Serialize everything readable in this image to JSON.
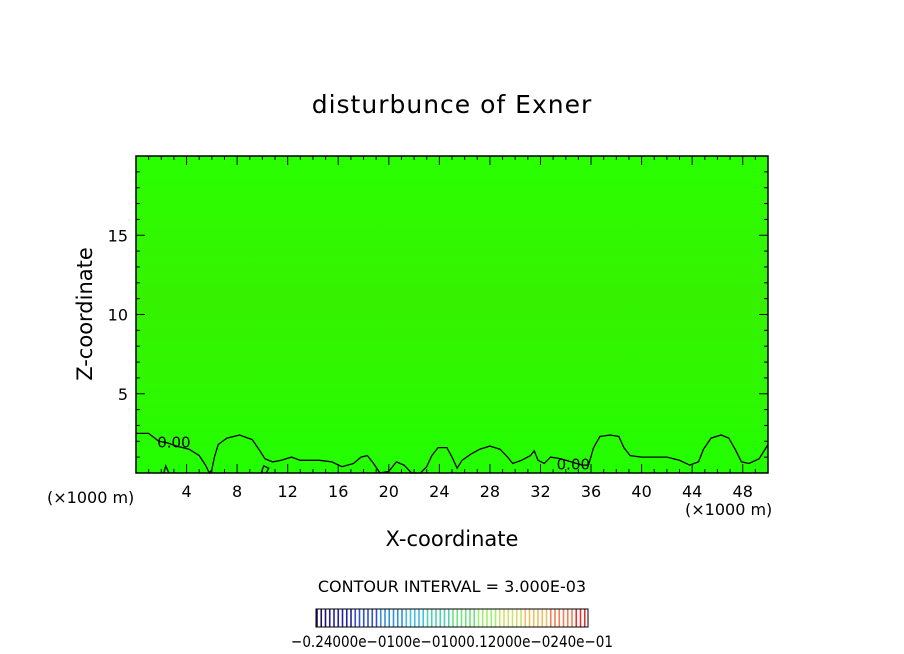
{
  "chart_data": {
    "type": "heatmap",
    "title": "disturbunce of Exner",
    "xlabel": "X-coordinate",
    "ylabel": "Z-coordinate",
    "x_unit": "(×1000 m)",
    "y_unit": "(×1000 m)",
    "xlim": [
      0,
      50
    ],
    "ylim": [
      0,
      20
    ],
    "x_ticks": [
      4,
      8,
      12,
      16,
      20,
      24,
      28,
      32,
      36,
      40,
      44,
      48
    ],
    "y_ticks": [
      5,
      10,
      15
    ],
    "field_color": "#22ff00",
    "contour_interval_text": "CONTOUR INTERVAL = 3.000E-03",
    "contours": [
      {
        "level": "0.00",
        "labels": [
          {
            "text": "0.00",
            "x": 3.0,
            "y": 2.0
          },
          {
            "text": "0.00",
            "x": 34.6,
            "y": 0.6
          }
        ],
        "points": [
          [
            0,
            2.5
          ],
          [
            1.0,
            2.5
          ],
          [
            1.8,
            2.0
          ],
          [
            2.5,
            1.9
          ],
          [
            3.2,
            1.7
          ],
          [
            4.2,
            1.5
          ],
          [
            5.0,
            1.1
          ],
          [
            5.5,
            0.5
          ],
          [
            5.8,
            0.0
          ],
          [
            6.0,
            0.2
          ],
          [
            6.2,
            1.0
          ],
          [
            6.5,
            1.8
          ],
          [
            7.2,
            2.2
          ],
          [
            8.2,
            2.4
          ],
          [
            9.2,
            2.1
          ],
          [
            9.8,
            1.4
          ],
          [
            10.2,
            0.9
          ],
          [
            10.8,
            0.7
          ],
          [
            11.5,
            0.8
          ],
          [
            12.3,
            1.0
          ],
          [
            13.0,
            0.8
          ],
          [
            14.5,
            0.8
          ],
          [
            15.5,
            0.7
          ],
          [
            16.3,
            0.4
          ],
          [
            17.2,
            0.6
          ],
          [
            17.8,
            1.0
          ],
          [
            18.3,
            1.1
          ],
          [
            18.8,
            0.6
          ],
          [
            19.3,
            0.0
          ],
          [
            20.0,
            0.1
          ],
          [
            20.6,
            0.7
          ],
          [
            21.2,
            0.5
          ],
          [
            21.8,
            0.0
          ],
          [
            22.5,
            0.0
          ],
          [
            23.0,
            0.4
          ],
          [
            23.4,
            1.1
          ],
          [
            23.9,
            1.6
          ],
          [
            24.6,
            1.6
          ],
          [
            25.0,
            1.0
          ],
          [
            25.4,
            0.3
          ],
          [
            25.8,
            0.8
          ],
          [
            26.5,
            1.2
          ],
          [
            27.2,
            1.5
          ],
          [
            28.0,
            1.7
          ],
          [
            28.8,
            1.5
          ],
          [
            29.4,
            1.0
          ],
          [
            29.8,
            0.6
          ],
          [
            30.5,
            0.8
          ],
          [
            31.2,
            1.1
          ],
          [
            31.5,
            1.4
          ],
          [
            31.8,
            0.8
          ],
          [
            32.3,
            0.6
          ],
          [
            32.8,
            1.0
          ],
          [
            33.6,
            0.9
          ],
          [
            35.3,
            0.5
          ],
          [
            35.8,
            0.5
          ],
          [
            36.2,
            1.6
          ],
          [
            36.7,
            2.3
          ],
          [
            37.5,
            2.4
          ],
          [
            38.2,
            2.3
          ],
          [
            38.6,
            1.6
          ],
          [
            39.1,
            1.1
          ],
          [
            40.0,
            1.0
          ],
          [
            41.0,
            1.0
          ],
          [
            42.0,
            1.0
          ],
          [
            43.0,
            0.8
          ],
          [
            43.8,
            0.5
          ],
          [
            44.5,
            0.7
          ],
          [
            44.9,
            1.5
          ],
          [
            45.5,
            2.2
          ],
          [
            46.3,
            2.4
          ],
          [
            46.9,
            2.2
          ],
          [
            47.4,
            1.5
          ],
          [
            47.9,
            0.7
          ],
          [
            48.5,
            0.6
          ],
          [
            49.3,
            0.9
          ],
          [
            50.0,
            1.8
          ]
        ]
      },
      {
        "level": "0.00",
        "labels": [],
        "points": [
          [
            2.2,
            0.0
          ],
          [
            2.35,
            0.45
          ],
          [
            2.6,
            0.0
          ]
        ]
      },
      {
        "level": "0.00",
        "labels": [],
        "points": [
          [
            9.9,
            0.0
          ],
          [
            10.1,
            0.45
          ],
          [
            10.5,
            0.3
          ],
          [
            10.3,
            0.0
          ]
        ]
      }
    ],
    "colorbar": {
      "labels": [
        "-0.240",
        "-0.12",
        "0.00",
        "0.12",
        "0.240"
      ],
      "label_text": "−0.24000e−0100e−01000.12000e−0240e−01",
      "colors": [
        "#201060",
        "#2020a0",
        "#3050d0",
        "#3090e0",
        "#40c0e0",
        "#50d0b0",
        "#70e080",
        "#a0f070",
        "#d0e070",
        "#f0c060",
        "#f08050",
        "#e03030"
      ]
    }
  }
}
